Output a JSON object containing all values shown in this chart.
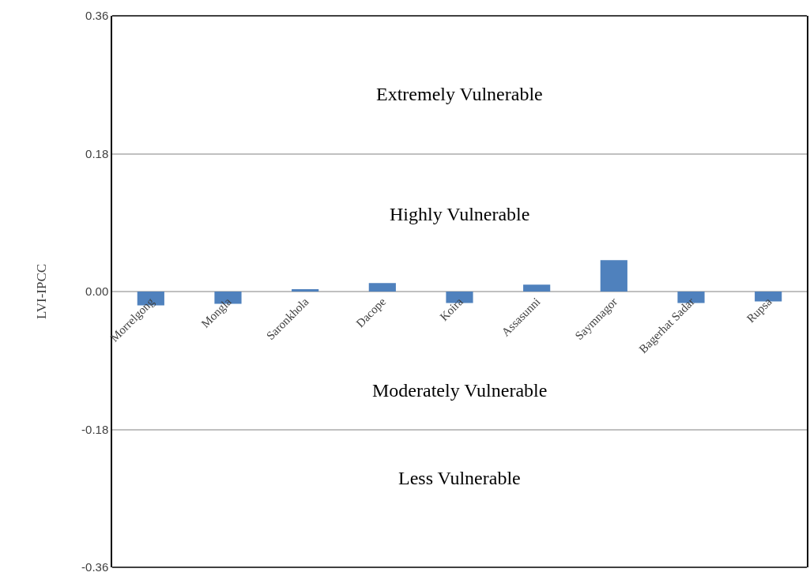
{
  "chart_data": {
    "type": "bar",
    "ylabel": "LVI-IPCC",
    "categories": [
      "Morrelgong",
      "Mongla",
      "Saronkhola",
      "Dacope",
      "Koira",
      "Assasunni",
      "Saymnagor",
      "Bagerhat Sadar",
      "Rupsa"
    ],
    "values": [
      -0.018,
      -0.016,
      0.003,
      0.011,
      -0.015,
      0.009,
      0.041,
      -0.015,
      -0.013
    ],
    "color": "#4f81bd",
    "ylim": [
      -0.36,
      0.36
    ],
    "yticks": [
      {
        "value": -0.36,
        "label": "-0.36"
      },
      {
        "value": -0.18,
        "label": "-0.18"
      },
      {
        "value": 0,
        "label": "0.00"
      },
      {
        "value": 0.18,
        "label": "0.18"
      },
      {
        "value": 0.36,
        "label": "0.36"
      }
    ],
    "grid": "y",
    "annotations": [
      "Extremely Vulnerable",
      "Highly Vulnerable",
      "Moderately Vulnerable",
      "Less Vulnerable"
    ]
  }
}
